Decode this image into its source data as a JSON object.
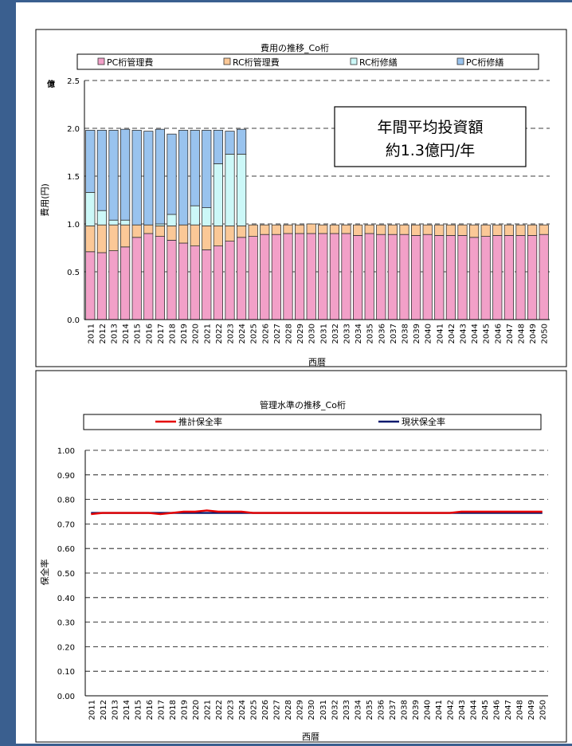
{
  "chart_data": [
    {
      "type": "bar",
      "title": "費用の推移_Co桁",
      "xlabel": "西暦",
      "ylabel": "費用(円)",
      "unit_label": "億",
      "ylim": [
        0,
        2.5
      ],
      "yticks": [
        "0.0",
        "0.5",
        "1.0",
        "1.5",
        "2.0",
        "2.5"
      ],
      "grid": "dashed-horizontal",
      "legend": "top",
      "stacked": true,
      "annotation": [
        "年間平均投資額",
        "約1.3億円/年"
      ],
      "categories": [
        "2011",
        "2012",
        "2013",
        "2014",
        "2015",
        "2016",
        "2017",
        "2018",
        "2019",
        "2020",
        "2021",
        "2022",
        "2023",
        "2024",
        "2025",
        "2026",
        "2027",
        "2028",
        "2029",
        "2030",
        "2031",
        "2032",
        "2033",
        "2034",
        "2035",
        "2036",
        "2037",
        "2038",
        "2039",
        "2040",
        "2041",
        "2042",
        "2043",
        "2044",
        "2045",
        "2046",
        "2047",
        "2048",
        "2049",
        "2050"
      ],
      "series": [
        {
          "name": "PC桁管理費",
          "color": "#f2a0c8",
          "values": [
            0.71,
            0.7,
            0.72,
            0.76,
            0.86,
            0.9,
            0.87,
            0.83,
            0.8,
            0.77,
            0.73,
            0.77,
            0.82,
            0.86,
            0.87,
            0.89,
            0.89,
            0.9,
            0.9,
            0.9,
            0.9,
            0.9,
            0.9,
            0.88,
            0.9,
            0.89,
            0.89,
            0.89,
            0.88,
            0.89,
            0.88,
            0.88,
            0.88,
            0.86,
            0.87,
            0.88,
            0.88,
            0.88,
            0.88,
            0.89
          ]
        },
        {
          "name": "RC桁管理費",
          "color": "#fbc897",
          "values": [
            0.27,
            0.29,
            0.27,
            0.23,
            0.13,
            0.09,
            0.11,
            0.15,
            0.19,
            0.22,
            0.25,
            0.21,
            0.16,
            0.12,
            0.12,
            0.1,
            0.1,
            0.09,
            0.09,
            0.1,
            0.09,
            0.09,
            0.09,
            0.11,
            0.09,
            0.1,
            0.1,
            0.1,
            0.11,
            0.1,
            0.11,
            0.11,
            0.11,
            0.13,
            0.12,
            0.11,
            0.11,
            0.11,
            0.11,
            0.1
          ]
        },
        {
          "name": "RC桁修繕",
          "color": "#ccf8f8",
          "values": [
            0.35,
            0.15,
            0.05,
            0.05,
            0.0,
            0.0,
            0.02,
            0.12,
            0.0,
            0.2,
            0.19,
            0.65,
            0.75,
            0.75,
            0,
            0,
            0,
            0,
            0,
            0,
            0,
            0,
            0,
            0,
            0,
            0,
            0,
            0,
            0,
            0,
            0,
            0,
            0,
            0,
            0,
            0,
            0,
            0,
            0,
            0
          ]
        },
        {
          "name": "PC桁修繕",
          "color": "#99c3ee",
          "values": [
            0.65,
            0.84,
            0.94,
            0.95,
            0.99,
            0.98,
            0.99,
            0.84,
            0.99,
            0.79,
            0.81,
            0.35,
            0.24,
            0.26,
            0,
            0,
            0,
            0,
            0,
            0,
            0,
            0,
            0,
            0,
            0,
            0,
            0,
            0,
            0,
            0,
            0,
            0,
            0,
            0,
            0,
            0,
            0,
            0,
            0,
            0
          ]
        }
      ]
    },
    {
      "type": "line",
      "title": "管理水準の推移_Co桁",
      "xlabel": "西暦",
      "ylabel": "保全率",
      "ylim": [
        0,
        1.0
      ],
      "yticks": [
        "0.00",
        "0.10",
        "0.20",
        "0.30",
        "0.40",
        "0.50",
        "0.60",
        "0.70",
        "0.80",
        "0.90",
        "1.00"
      ],
      "grid": "dashed-horizontal",
      "legend": "top",
      "categories": [
        "2011",
        "2012",
        "2013",
        "2014",
        "2015",
        "2016",
        "2017",
        "2018",
        "2019",
        "2020",
        "2021",
        "2022",
        "2023",
        "2024",
        "2025",
        "2026",
        "2027",
        "2028",
        "2029",
        "2030",
        "2031",
        "2032",
        "2033",
        "2034",
        "2035",
        "2036",
        "2037",
        "2038",
        "2039",
        "2040",
        "2041",
        "2042",
        "2043",
        "2044",
        "2045",
        "2046",
        "2047",
        "2048",
        "2049",
        "2050"
      ],
      "series": [
        {
          "name": "推計保全率",
          "color": "#e60000",
          "values": [
            0.74,
            0.745,
            0.745,
            0.745,
            0.745,
            0.745,
            0.74,
            0.745,
            0.75,
            0.75,
            0.755,
            0.75,
            0.75,
            0.75,
            0.745,
            0.745,
            0.745,
            0.745,
            0.745,
            0.745,
            0.745,
            0.745,
            0.745,
            0.745,
            0.745,
            0.745,
            0.745,
            0.745,
            0.745,
            0.745,
            0.745,
            0.745,
            0.75,
            0.75,
            0.75,
            0.75,
            0.75,
            0.75,
            0.75,
            0.75
          ]
        },
        {
          "name": "現状保全率",
          "color": "#0a1a6e",
          "values": [
            0.745,
            0.745,
            0.745,
            0.745,
            0.745,
            0.745,
            0.745,
            0.745,
            0.745,
            0.745,
            0.745,
            0.745,
            0.745,
            0.745,
            0.745,
            0.745,
            0.745,
            0.745,
            0.745,
            0.745,
            0.745,
            0.745,
            0.745,
            0.745,
            0.745,
            0.745,
            0.745,
            0.745,
            0.745,
            0.745,
            0.745,
            0.745,
            0.745,
            0.745,
            0.745,
            0.745,
            0.745,
            0.745,
            0.745,
            0.745
          ]
        }
      ]
    }
  ]
}
